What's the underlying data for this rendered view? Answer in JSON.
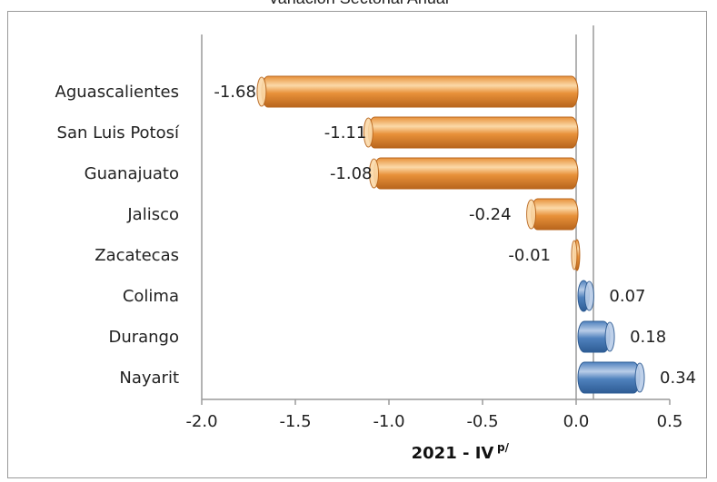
{
  "chart_data": {
    "type": "bar",
    "orientation": "horizontal",
    "title_fragment": "Variación Sectorial Anual",
    "categories": [
      "Aguascalientes",
      "San Luis Potosí",
      "Guanajuato",
      "Jalisco",
      "Zacatecas",
      "Colima",
      "Durango",
      "Nayarit"
    ],
    "values": [
      -1.68,
      -1.11,
      -1.08,
      -0.24,
      -0.01,
      0.07,
      0.18,
      0.34
    ],
    "data_labels": [
      "-1.68",
      "-1.11",
      "-1.08",
      "-0.24",
      "-0.01",
      "0.07",
      "0.18",
      "0.34"
    ],
    "xlabel": "2021 - IV",
    "xlabel_superscript": "p/",
    "xlim": [
      -2.0,
      0.5
    ],
    "xticks": [
      "-2.0",
      "-1.5",
      "-1.0",
      "-0.5",
      "0.0",
      "0.5"
    ],
    "xtick_values": [
      -2.0,
      -1.5,
      -1.0,
      -0.5,
      0.0,
      0.5
    ],
    "grid": false,
    "colors": {
      "negative": "#E8913A",
      "negative_light": "#FBD9A8",
      "negative_dark": "#B8651C",
      "positive": "#4F81BD",
      "positive_light": "#B9CDE8",
      "positive_dark": "#2E5C94"
    }
  }
}
